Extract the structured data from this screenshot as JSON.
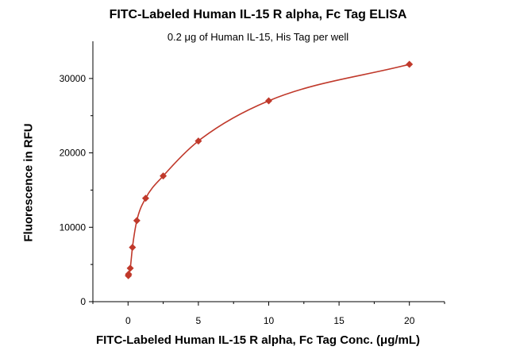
{
  "chart_data": {
    "type": "scatter",
    "title": "FITC-Labeled Human IL-15 R alpha, Fc Tag ELISA",
    "subtitle": "0.2 μg of Human IL-15, His Tag per well",
    "xlabel": "FITC-Labeled Human IL-15 R alpha, Fc Tag Conc. (μg/mL)",
    "ylabel": "Fluorescence in RFU",
    "xlim": [
      -2.5,
      22.5
    ],
    "ylim": [
      0,
      35000
    ],
    "xticks": [
      0,
      5,
      10,
      15,
      20
    ],
    "xtick_labels": [
      "0",
      "5",
      "10",
      "15",
      "20"
    ],
    "yticks": [
      0,
      10000,
      20000,
      30000
    ],
    "ytick_labels": [
      "0",
      "10000",
      "20000",
      "30000"
    ],
    "grid": false,
    "legend": "none",
    "color": "#c0392b",
    "series": [
      {
        "marker": "diamond",
        "fit_line": true,
        "x": [
          0.0195,
          0.039,
          0.156,
          0.313,
          0.625,
          1.25,
          2.5,
          5,
          10,
          20
        ],
        "y": [
          3500,
          3700,
          4500,
          7300,
          10900,
          13900,
          16900,
          21600,
          27000,
          31900
        ]
      }
    ]
  }
}
